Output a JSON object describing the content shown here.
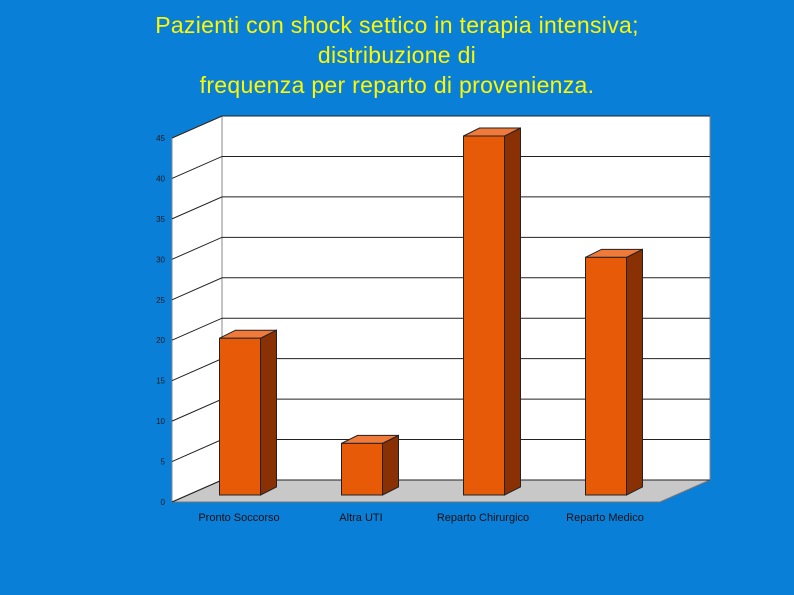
{
  "title_lines": [
    "Pazienti con shock settico in terapia intensiva;",
    "distribuzione di",
    "frequenza per reparto di provenienza."
  ],
  "colors": {
    "background": "#0a7fd8",
    "title": "#fff700",
    "bar_front": "#e65a08",
    "bar_side": "#8a3005",
    "bar_top": "#f07a3a",
    "wall": "#ffffff",
    "floor": "#c8c8c8"
  },
  "chart_data": {
    "type": "bar",
    "title": "Pazienti con shock settico in terapia intensiva; distribuzione di frequenza per reparto di provenienza.",
    "categories": [
      "Pronto Soccorso",
      "Altra UTI",
      "Reparto Chirurgico",
      "Reparto Medico"
    ],
    "values": [
      20,
      7,
      45,
      30
    ],
    "ylim": [
      0,
      45
    ],
    "yticks": [
      "0",
      "5",
      "10",
      "15",
      "20",
      "25",
      "30",
      "35",
      "40",
      "45"
    ],
    "grid": true,
    "legend": "none",
    "xlabel": "",
    "ylabel": ""
  }
}
